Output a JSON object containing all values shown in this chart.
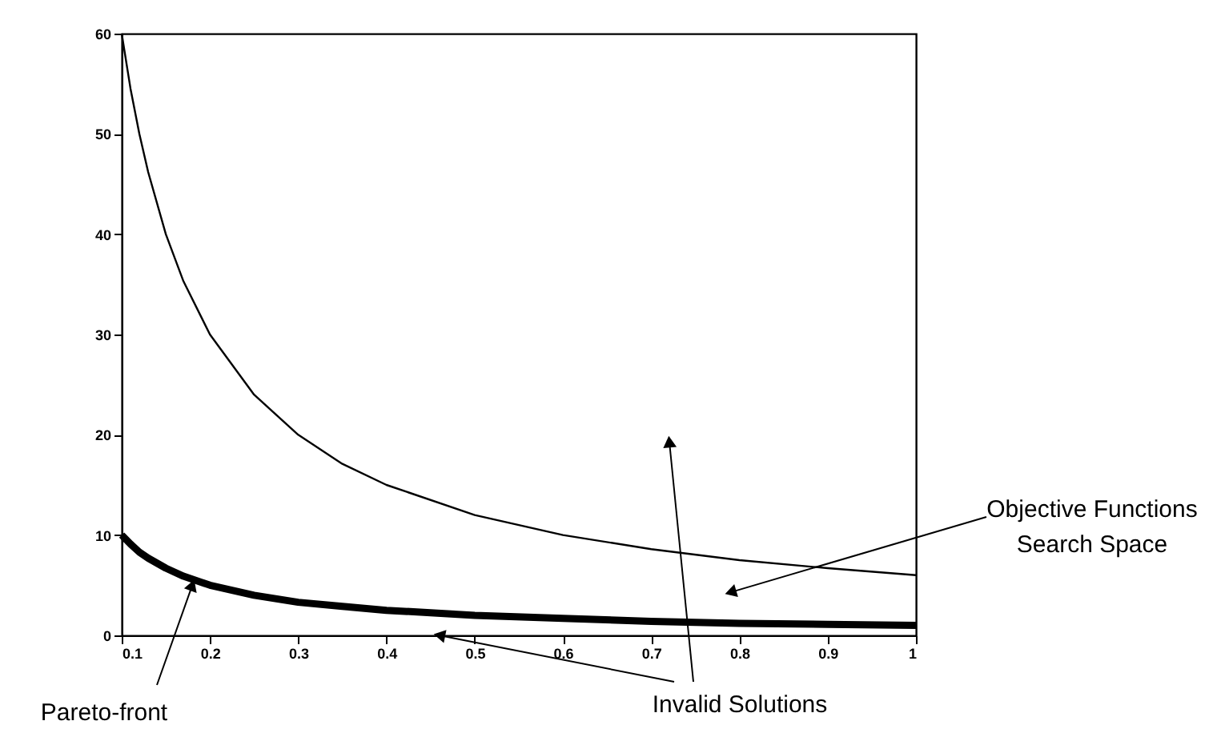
{
  "chart_data": {
    "type": "line",
    "x": [
      0.1,
      0.11,
      0.12,
      0.13,
      0.15,
      0.17,
      0.2,
      0.25,
      0.3,
      0.35,
      0.4,
      0.5,
      0.6,
      0.7,
      0.8,
      0.9,
      1.0
    ],
    "series": [
      {
        "color": "#000000",
        "values": [
          60,
          54.5,
          50,
          46.2,
          40,
          35.3,
          30,
          24,
          20,
          17.1,
          15,
          12,
          10,
          8.6,
          7.5,
          6.7,
          6
        ]
      },
      {
        "color": "#000000",
        "values": [
          10,
          9.1,
          8.3,
          7.7,
          6.7,
          5.9,
          5,
          4,
          3.3,
          2.9,
          2.5,
          2,
          1.7,
          1.4,
          1.2,
          1.1,
          1
        ]
      }
    ],
    "xlim": [
      0.1,
      1
    ],
    "xticks": [
      0.1,
      0.2,
      0.3,
      0.4,
      0.5,
      0.6,
      0.7,
      0.8,
      0.9,
      1
    ],
    "ylim": [
      0,
      60
    ],
    "yticks": [
      0,
      10,
      20,
      30,
      40,
      50,
      60
    ],
    "grid": false,
    "marker": "none",
    "line_style": "solid",
    "annotations": [
      {
        "text": "Pareto-front",
        "x": 0.18,
        "y": 5
      },
      {
        "text": "Invalid Solutions",
        "x": 0.46,
        "y": 0
      },
      {
        "text": "Objective Functions\nSearch Space",
        "x": 0.79,
        "y": 4.3
      }
    ]
  }
}
